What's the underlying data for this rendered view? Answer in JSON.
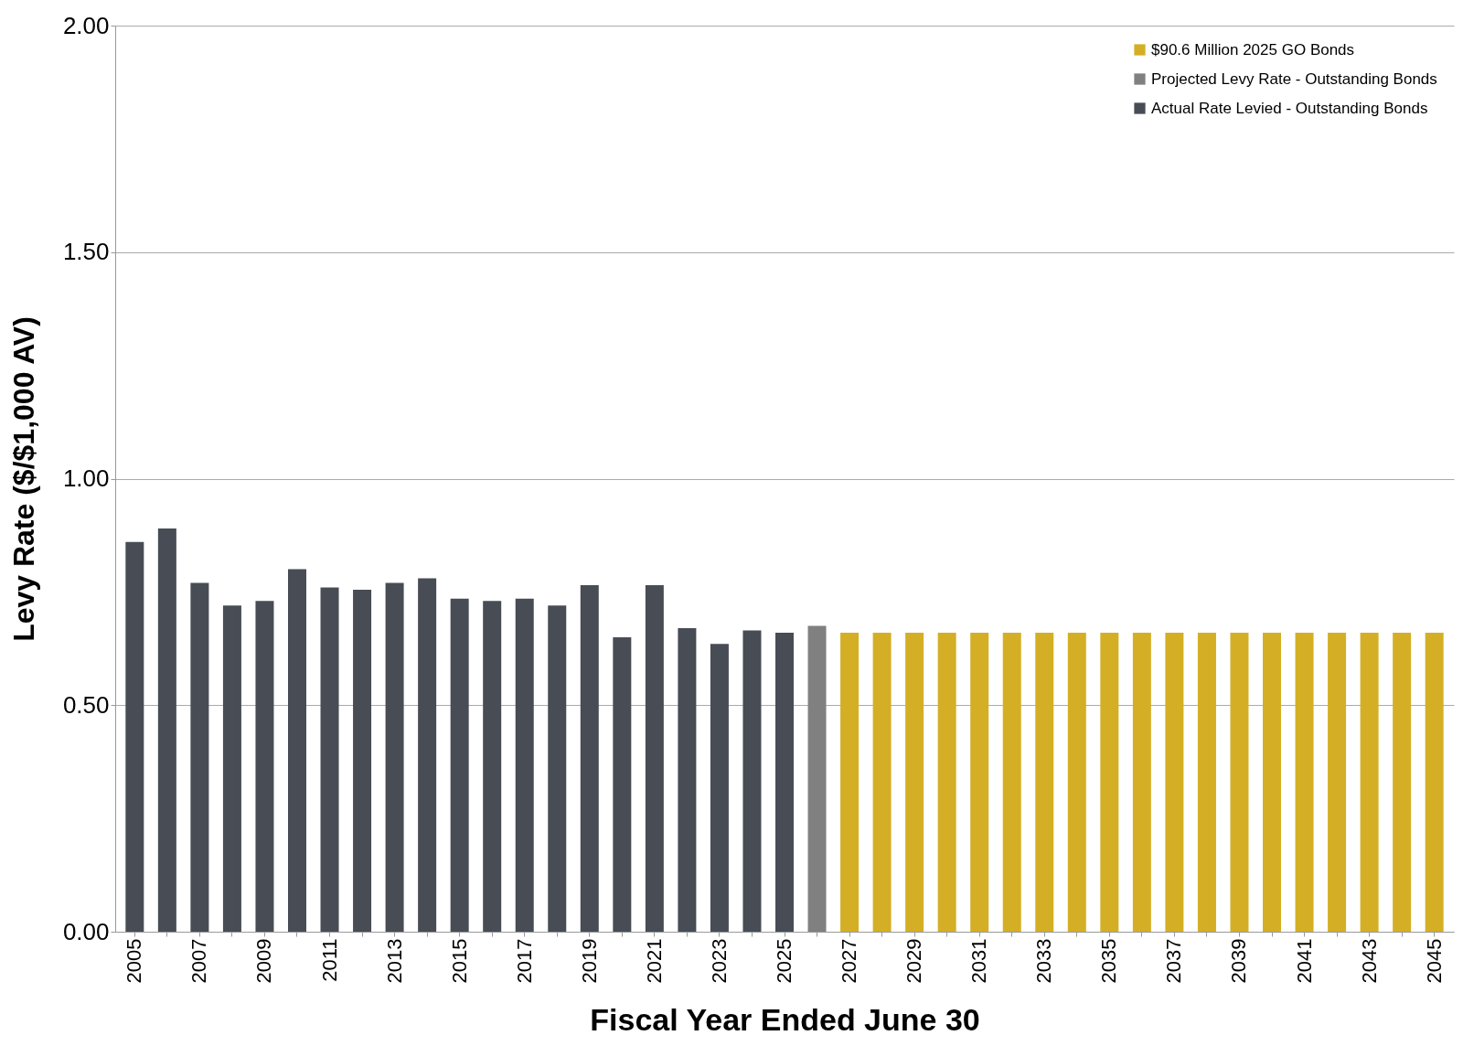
{
  "chart_data": {
    "type": "bar",
    "xlabel": "Fiscal Year Ended June 30",
    "ylabel": "Levy Rate ($/$1,000 AV)",
    "categories": [
      "2005",
      null,
      "2007",
      null,
      "2009",
      null,
      "2011",
      null,
      "2013",
      null,
      "2015",
      null,
      "2017",
      null,
      "2019",
      null,
      "2021",
      null,
      "2023",
      null,
      "2025",
      null,
      "2027",
      null,
      "2029",
      null,
      "2031",
      null,
      "2033",
      null,
      "2035",
      null,
      "2037",
      null,
      "2039",
      null,
      "2041",
      null,
      "2043",
      null,
      "2045"
    ],
    "series": [
      {
        "name": "$90.6 Million 2025 GO Bonds",
        "color": "#d4af25",
        "values": [
          null,
          null,
          null,
          null,
          null,
          null,
          null,
          null,
          null,
          null,
          null,
          null,
          null,
          null,
          null,
          null,
          null,
          null,
          null,
          null,
          null,
          null,
          0.66,
          0.66,
          0.66,
          0.66,
          0.66,
          0.66,
          0.66,
          0.66,
          0.66,
          0.66,
          0.66,
          0.66,
          0.66,
          0.66,
          0.66,
          0.66,
          0.66,
          0.66,
          0.66
        ]
      },
      {
        "name": "Projected Levy Rate - Outstanding Bonds",
        "color": "#808080",
        "values": [
          null,
          null,
          null,
          null,
          null,
          null,
          null,
          null,
          null,
          null,
          null,
          null,
          null,
          null,
          null,
          null,
          null,
          null,
          null,
          null,
          null,
          0.675,
          null,
          null,
          null,
          null,
          null,
          null,
          null,
          null,
          null,
          null,
          null,
          null,
          null,
          null,
          null,
          null,
          null,
          null,
          null
        ]
      },
      {
        "name": "Actual Rate Levied - Outstanding Bonds",
        "color": "#474c55",
        "values": [
          0.86,
          0.89,
          0.77,
          0.72,
          0.73,
          0.8,
          0.76,
          0.755,
          0.77,
          0.78,
          0.735,
          0.73,
          0.735,
          0.72,
          0.765,
          0.65,
          0.765,
          0.67,
          0.635,
          0.665,
          0.66,
          null,
          null,
          null,
          null,
          null,
          null,
          null,
          null,
          null,
          null,
          null,
          null,
          null,
          null,
          null,
          null,
          null,
          null,
          null,
          null
        ]
      }
    ],
    "ylim": [
      0,
      2
    ],
    "yticks": [
      {
        "value": 0,
        "label": "0.00"
      },
      {
        "value": 0.5,
        "label": "0.50"
      },
      {
        "value": 1,
        "label": "1.00"
      },
      {
        "value": 1.5,
        "label": "1.50"
      },
      {
        "value": 2,
        "label": "2.00"
      }
    ],
    "grid": "y",
    "legend": "top right"
  }
}
